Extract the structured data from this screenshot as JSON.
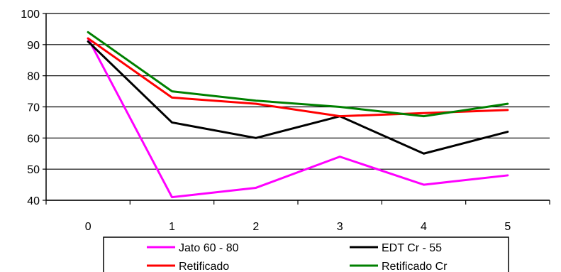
{
  "chart_data": {
    "type": "line",
    "x": [
      0,
      1,
      2,
      3,
      4,
      5
    ],
    "xticks": [
      "0",
      "1",
      "2",
      "3",
      "4",
      "5"
    ],
    "yticks": [
      "40",
      "50",
      "60",
      "70",
      "80",
      "90",
      "100"
    ],
    "ylim": [
      40,
      100
    ],
    "grid": "horizontal",
    "legend_position": "bottom",
    "series": [
      {
        "name": "Jato 60 - 80",
        "color": "#ff00ff",
        "values": [
          92,
          41,
          44,
          54,
          45,
          48
        ]
      },
      {
        "name": "EDT Cr - 55",
        "color": "#000000",
        "values": [
          91,
          65,
          60,
          67,
          55,
          62
        ]
      },
      {
        "name": "Retificado",
        "color": "#ff0000",
        "values": [
          92,
          73,
          71,
          67,
          68,
          69
        ]
      },
      {
        "name": "Retificado Cr",
        "color": "#008000",
        "values": [
          94,
          75,
          72,
          70,
          67,
          71
        ]
      }
    ]
  }
}
